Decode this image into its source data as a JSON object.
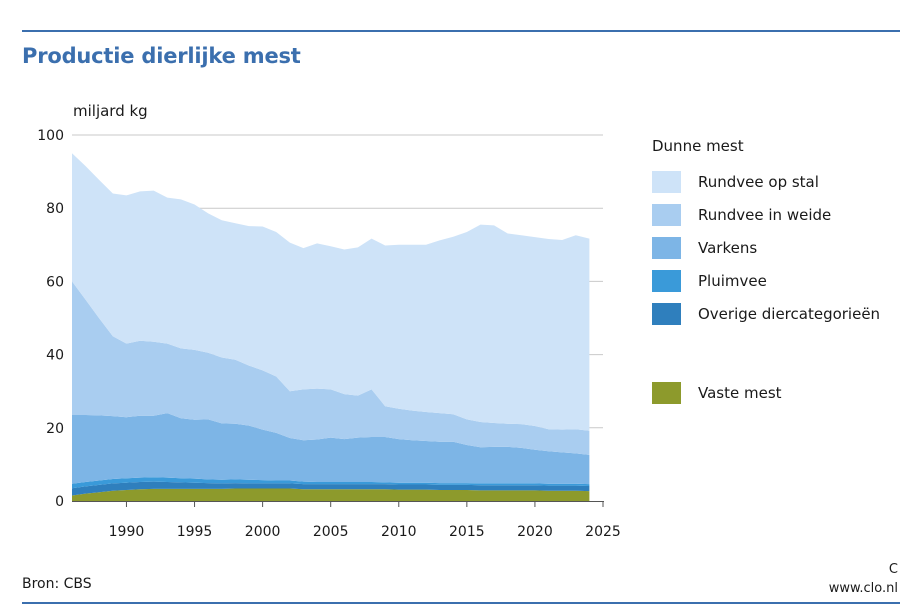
{
  "chart_data": {
    "type": "area",
    "title": "Productie dierlijke mest",
    "ylabel": "miljard kg",
    "xlabel": "",
    "xlim": [
      1986,
      2025
    ],
    "ylim": [
      0,
      100
    ],
    "x_ticks": [
      1990,
      1995,
      2000,
      2005,
      2010,
      2015,
      2020,
      2025
    ],
    "y_ticks": [
      0,
      20,
      40,
      60,
      80,
      100
    ],
    "grid": "horizontal",
    "stacked": true,
    "legend_position": "right",
    "legend_groups": [
      {
        "title": "Dunne mest",
        "items": [
          "Rundvee op stal",
          "Rundvee in weide",
          "Varkens",
          "Pluimvee",
          "Overige diercategorieën"
        ]
      },
      {
        "title": "",
        "items": [
          "Vaste mest"
        ]
      }
    ],
    "x": [
      1986,
      1987,
      1988,
      1989,
      1990,
      1991,
      1992,
      1993,
      1994,
      1995,
      1996,
      1997,
      1998,
      1999,
      2000,
      2001,
      2002,
      2003,
      2004,
      2005,
      2006,
      2007,
      2008,
      2009,
      2010,
      2011,
      2012,
      2013,
      2014,
      2015,
      2016,
      2017,
      2018,
      2019,
      2020,
      2021,
      2022,
      2023,
      2024
    ],
    "series": [
      {
        "name": "Vaste mest",
        "color": "#8d9a2c",
        "values": [
          1.5,
          2.0,
          2.4,
          2.8,
          3.0,
          3.2,
          3.3,
          3.3,
          3.3,
          3.3,
          3.3,
          3.3,
          3.4,
          3.4,
          3.4,
          3.4,
          3.4,
          3.2,
          3.2,
          3.2,
          3.2,
          3.2,
          3.2,
          3.2,
          3.1,
          3.1,
          3.1,
          3.0,
          3.0,
          3.0,
          2.9,
          2.9,
          2.9,
          2.9,
          2.9,
          2.8,
          2.8,
          2.8,
          2.7
        ]
      },
      {
        "name": "Overige diercategorieën",
        "color": "#2f7fbd",
        "values": [
          2.0,
          2.0,
          2.0,
          2.0,
          2.0,
          2.0,
          2.0,
          1.9,
          1.8,
          1.7,
          1.6,
          1.5,
          1.5,
          1.4,
          1.4,
          1.4,
          1.4,
          1.4,
          1.4,
          1.4,
          1.4,
          1.4,
          1.4,
          1.4,
          1.4,
          1.4,
          1.4,
          1.4,
          1.4,
          1.4,
          1.4,
          1.4,
          1.4,
          1.4,
          1.4,
          1.4,
          1.4,
          1.4,
          1.4
        ]
      },
      {
        "name": "Pluimvee",
        "color": "#3a9ad9",
        "values": [
          1.2,
          1.2,
          1.2,
          1.2,
          1.2,
          1.2,
          1.2,
          1.2,
          1.1,
          1.1,
          1.0,
          1.0,
          1.0,
          1.0,
          0.9,
          0.8,
          0.8,
          0.7,
          0.6,
          0.6,
          0.6,
          0.6,
          0.6,
          0.5,
          0.5,
          0.5,
          0.5,
          0.5,
          0.5,
          0.5,
          0.5,
          0.5,
          0.5,
          0.5,
          0.5,
          0.5,
          0.5,
          0.5,
          0.5
        ]
      },
      {
        "name": "Varkens",
        "color": "#7db5e6",
        "values": [
          18.8,
          18.3,
          17.8,
          17.2,
          16.7,
          16.9,
          16.8,
          17.6,
          16.4,
          16.1,
          16.4,
          15.4,
          15.2,
          14.8,
          13.8,
          13.0,
          11.6,
          11.3,
          11.6,
          12.1,
          11.7,
          12.1,
          12.3,
          12.4,
          11.9,
          11.6,
          11.4,
          11.3,
          11.3,
          10.4,
          9.9,
          10.0,
          10.0,
          9.7,
          9.2,
          8.9,
          8.6,
          8.3,
          8.0
        ]
      },
      {
        "name": "Rundvee in weide",
        "color": "#a9cdf0",
        "values": [
          36.5,
          31.5,
          26.5,
          21.8,
          20.1,
          20.5,
          20.2,
          19.0,
          19.1,
          19.1,
          18.2,
          18.0,
          17.5,
          16.4,
          16.2,
          15.4,
          12.8,
          13.9,
          13.9,
          13.2,
          12.3,
          11.5,
          13.0,
          8.4,
          8.3,
          8.1,
          7.9,
          7.8,
          7.5,
          7.0,
          6.9,
          6.5,
          6.3,
          6.5,
          6.5,
          6.0,
          6.2,
          6.6,
          6.6
        ]
      },
      {
        "name": "Rundvee op stal",
        "color": "#cee3f8",
        "values": [
          35.0,
          36.5,
          37.8,
          39.0,
          40.5,
          40.8,
          41.3,
          39.9,
          40.7,
          39.7,
          38.1,
          37.5,
          37.3,
          38.1,
          39.3,
          39.5,
          40.6,
          38.6,
          39.7,
          39.1,
          39.5,
          40.5,
          41.2,
          43.9,
          44.8,
          45.3,
          45.7,
          47.2,
          48.5,
          51.2,
          53.9,
          54.0,
          52.0,
          51.6,
          51.6,
          52.0,
          51.8,
          53.0,
          52.5
        ]
      }
    ]
  },
  "page": {
    "title": "Productie dierlijke mest",
    "unit": "miljard kg",
    "source": "Bron: CBS",
    "credit_line1": "C",
    "credit_line2": "www.clo.nl"
  },
  "legend": {
    "group_title": "Dunne mest",
    "items": [
      {
        "label": "Rundvee op stal",
        "color": "#cee3f8"
      },
      {
        "label": "Rundvee in weide",
        "color": "#a9cdf0"
      },
      {
        "label": "Varkens",
        "color": "#7db5e6"
      },
      {
        "label": "Pluimvee",
        "color": "#3a9ad9"
      },
      {
        "label": "Overige diercategorieën",
        "color": "#2f7fbd"
      }
    ],
    "extra": {
      "label": "Vaste mest",
      "color": "#8d9a2c"
    }
  }
}
